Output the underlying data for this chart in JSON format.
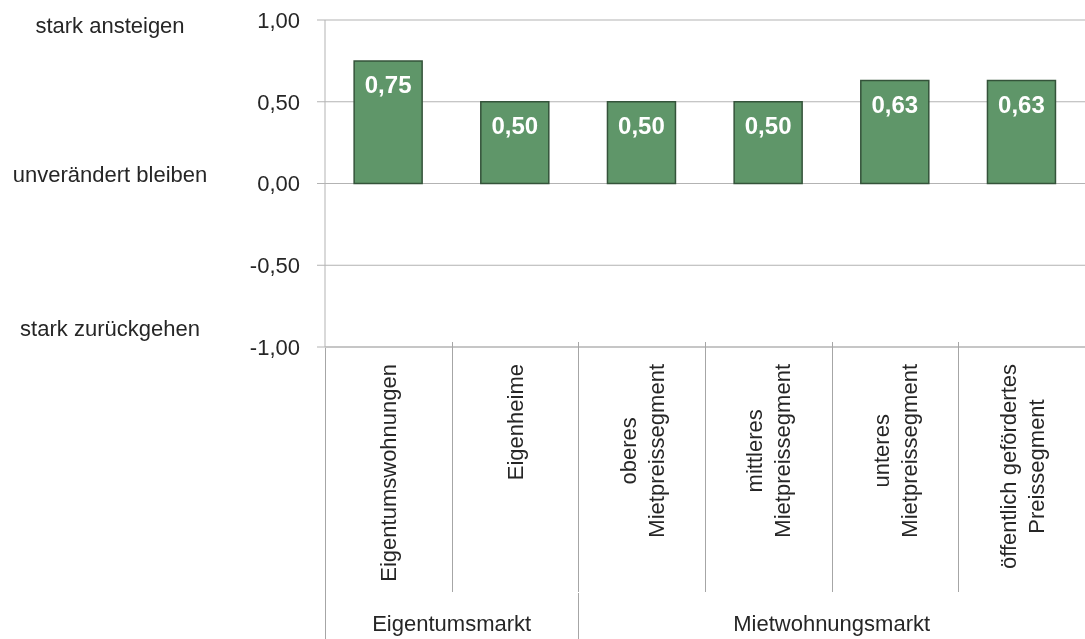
{
  "chart_data": {
    "type": "bar",
    "categories": [
      "Eigentumswohnungen",
      "Eigenheime",
      "oberes Mietpreissegment",
      "mittleres Mietpreissegment",
      "unteres Mietpreissegment",
      "öffentlich gefördertes Preissegment"
    ],
    "values": [
      0.75,
      0.5,
      0.5,
      0.5,
      0.63,
      0.63
    ],
    "value_labels": [
      "0,75",
      "0,50",
      "0,50",
      "0,50",
      "0,63",
      "0,63"
    ],
    "color": "#5f9669",
    "ylim": [
      -1,
      1
    ],
    "yticks": [
      {
        "value": -1,
        "label": "-1,00"
      },
      {
        "value": -0.5,
        "label": "-0,50"
      },
      {
        "value": 0,
        "label": "0,00"
      },
      {
        "value": 0.5,
        "label": "0,50"
      },
      {
        "value": 1,
        "label": "1,00"
      }
    ],
    "grid": "y",
    "annotations": [
      "stark ansteigen",
      "unverändert bleiben",
      "stark zurückgehen",
      "Eigentumsmarkt",
      "Mietwohnungsmarkt"
    ]
  }
}
